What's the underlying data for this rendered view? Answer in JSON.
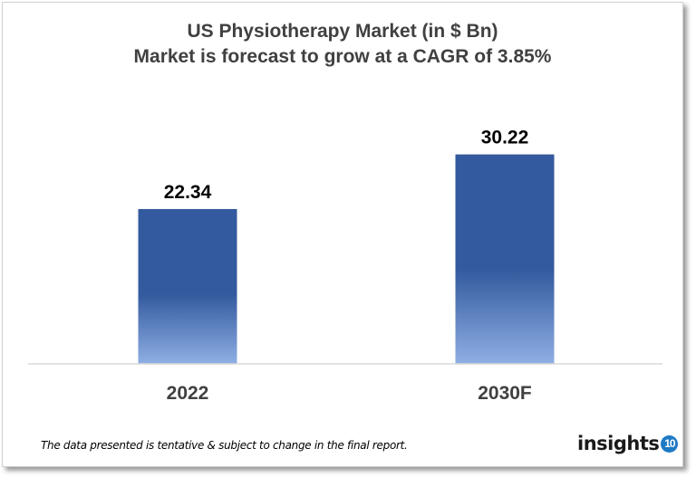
{
  "chart_data": {
    "type": "bar",
    "title": "US Physiotherapy Market (in $ Bn)",
    "subtitle": "Market is forecast to grow at a CAGR of 3.85%",
    "categories": [
      "2022",
      "2030F"
    ],
    "values": [
      22.34,
      30.22
    ],
    "data_labels": [
      "22.34",
      "30.22"
    ],
    "xlabel": "",
    "ylabel": "",
    "ylim": [
      0,
      35
    ],
    "grid": false,
    "legend": "none",
    "bar_color_top": "#335a9e",
    "bar_color_bottom": "#8fafe4"
  },
  "footer": {
    "note": "The data presented is tentative & subject to change in the final report.",
    "logo_text": "insights",
    "logo_badge": "10"
  }
}
